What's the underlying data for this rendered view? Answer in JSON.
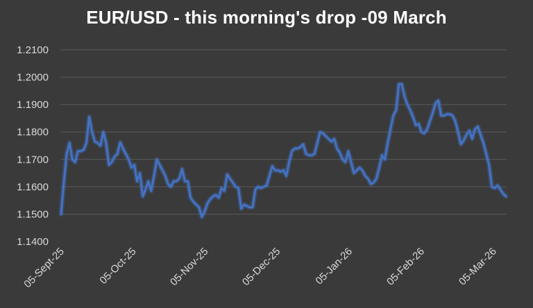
{
  "chart_data": {
    "type": "line",
    "title": "EUR/USD - this morning's drop -09 March",
    "xlabel": "",
    "ylabel": "",
    "ylim": [
      1.14,
      1.21
    ],
    "yticks": [
      "1.1400",
      "1.1500",
      "1.1600",
      "1.1700",
      "1.1800",
      "1.1900",
      "1.2000",
      "1.2100"
    ],
    "xticks": [
      "05-Sept-25",
      "05-Oct-25",
      "05-Nov-25",
      "05-Dec-25",
      "05-Jan-26",
      "05-Feb-26",
      "05-Mar-26"
    ],
    "grid": true,
    "legend": "none",
    "series_color": "#4472c4",
    "series": [
      {
        "values": [
          1.15,
          1.162,
          1.172,
          1.176,
          1.17,
          1.169,
          1.173,
          1.173,
          1.1735,
          1.176,
          1.1855,
          1.18,
          1.1765,
          1.176,
          1.175,
          1.18,
          1.176,
          1.168,
          1.169,
          1.171,
          1.172,
          1.1762,
          1.174,
          1.172,
          1.17,
          1.167,
          1.168,
          1.162,
          1.165,
          1.1565,
          1.159,
          1.162,
          1.1585,
          1.164,
          1.17,
          1.168,
          1.166,
          1.164,
          1.161,
          1.16,
          1.162,
          1.162,
          1.163,
          1.1665,
          1.162,
          1.162,
          1.156,
          1.1545,
          1.1535,
          1.1525,
          1.149,
          1.151,
          1.154,
          1.1555,
          1.1565,
          1.157,
          1.156,
          1.1595,
          1.1585,
          1.1645,
          1.163,
          1.1615,
          1.16,
          1.1595,
          1.152,
          1.1535,
          1.153,
          1.1525,
          1.1525,
          1.159,
          1.16,
          1.1595,
          1.16,
          1.1605,
          1.164,
          1.1675,
          1.166,
          1.166,
          1.1655,
          1.166,
          1.164,
          1.169,
          1.173,
          1.174,
          1.174,
          1.1745,
          1.1755,
          1.172,
          1.1715,
          1.1715,
          1.172,
          1.176,
          1.18,
          1.1795,
          1.1785,
          1.1775,
          1.1765,
          1.1775,
          1.174,
          1.1725,
          1.17,
          1.169,
          1.173,
          1.169,
          1.165,
          1.166,
          1.167,
          1.166,
          1.164,
          1.163,
          1.161,
          1.1615,
          1.163,
          1.167,
          1.1715,
          1.17,
          1.176,
          1.181,
          1.186,
          1.188,
          1.1975,
          1.1975,
          1.193,
          1.19,
          1.188,
          1.1855,
          1.1825,
          1.183,
          1.18,
          1.1795,
          1.181,
          1.184,
          1.187,
          1.1905,
          1.1915,
          1.186,
          1.186,
          1.1865,
          1.1865,
          1.186,
          1.184,
          1.18,
          1.1755,
          1.177,
          1.179,
          1.1805,
          1.1775,
          1.181,
          1.182,
          1.179,
          1.176,
          1.172,
          1.168,
          1.16,
          1.1595,
          1.1605,
          1.159,
          1.1575,
          1.1565
        ]
      }
    ]
  }
}
